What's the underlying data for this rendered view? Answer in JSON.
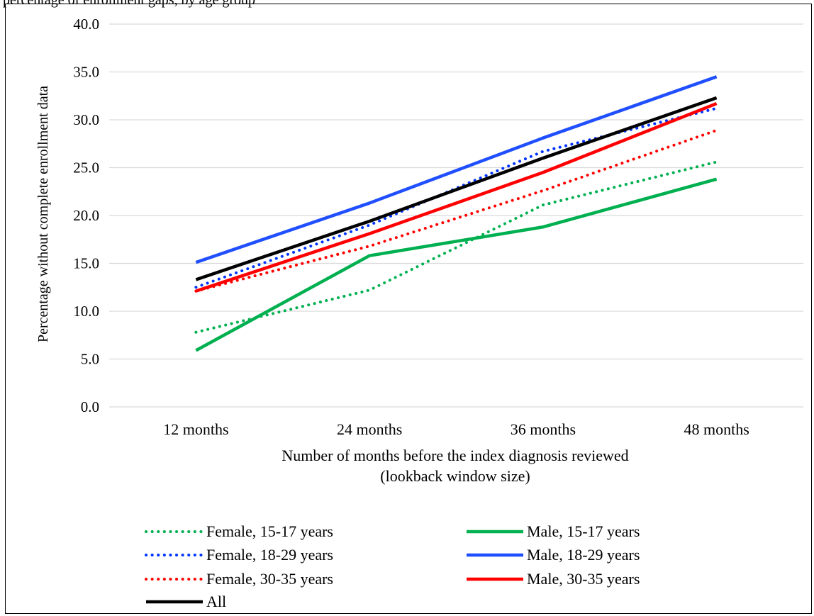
{
  "caption": "percentage of enrollment gaps, by age group",
  "chart_data": {
    "type": "line",
    "title": "",
    "xlabel": [
      "Number of months before the index diagnosis reviewed",
      "(lookback window size)"
    ],
    "ylabel": "Percentage without complete enrollment data",
    "categories": [
      "12 months",
      "24 months",
      "36 months",
      "48 months"
    ],
    "ylim": [
      0,
      40
    ],
    "yticks": [
      "0.0",
      "5.0",
      "10.0",
      "15.0",
      "20.0",
      "25.0",
      "30.0",
      "35.0",
      "40.0"
    ],
    "grid": true,
    "legend_position": "bottom",
    "series": [
      {
        "name": "Female, 15-17 years",
        "color": "#00b050",
        "style": "dotted",
        "values": [
          7.8,
          12.2,
          21.1,
          25.6
        ]
      },
      {
        "name": "Male, 15-17 years",
        "color": "#00b050",
        "style": "solid",
        "values": [
          5.9,
          15.8,
          18.8,
          23.8
        ]
      },
      {
        "name": "Female, 18-29 years",
        "color": "#0033ff",
        "style": "dotted",
        "values": [
          12.5,
          19.0,
          26.7,
          31.2
        ]
      },
      {
        "name": "Male, 18-29 years",
        "color": "#1f4fff",
        "style": "solid",
        "values": [
          15.1,
          21.3,
          28.1,
          34.5
        ]
      },
      {
        "name": "Female, 30-35 years",
        "color": "#ff0000",
        "style": "dotted",
        "values": [
          12.1,
          16.8,
          22.6,
          28.9
        ]
      },
      {
        "name": "Male, 30-35 years",
        "color": "#ff0000",
        "style": "solid",
        "values": [
          12.1,
          18.1,
          24.5,
          31.7
        ]
      },
      {
        "name": "All",
        "color": "#000000",
        "style": "solid",
        "values": [
          13.3,
          19.4,
          26.0,
          32.3
        ]
      }
    ]
  }
}
